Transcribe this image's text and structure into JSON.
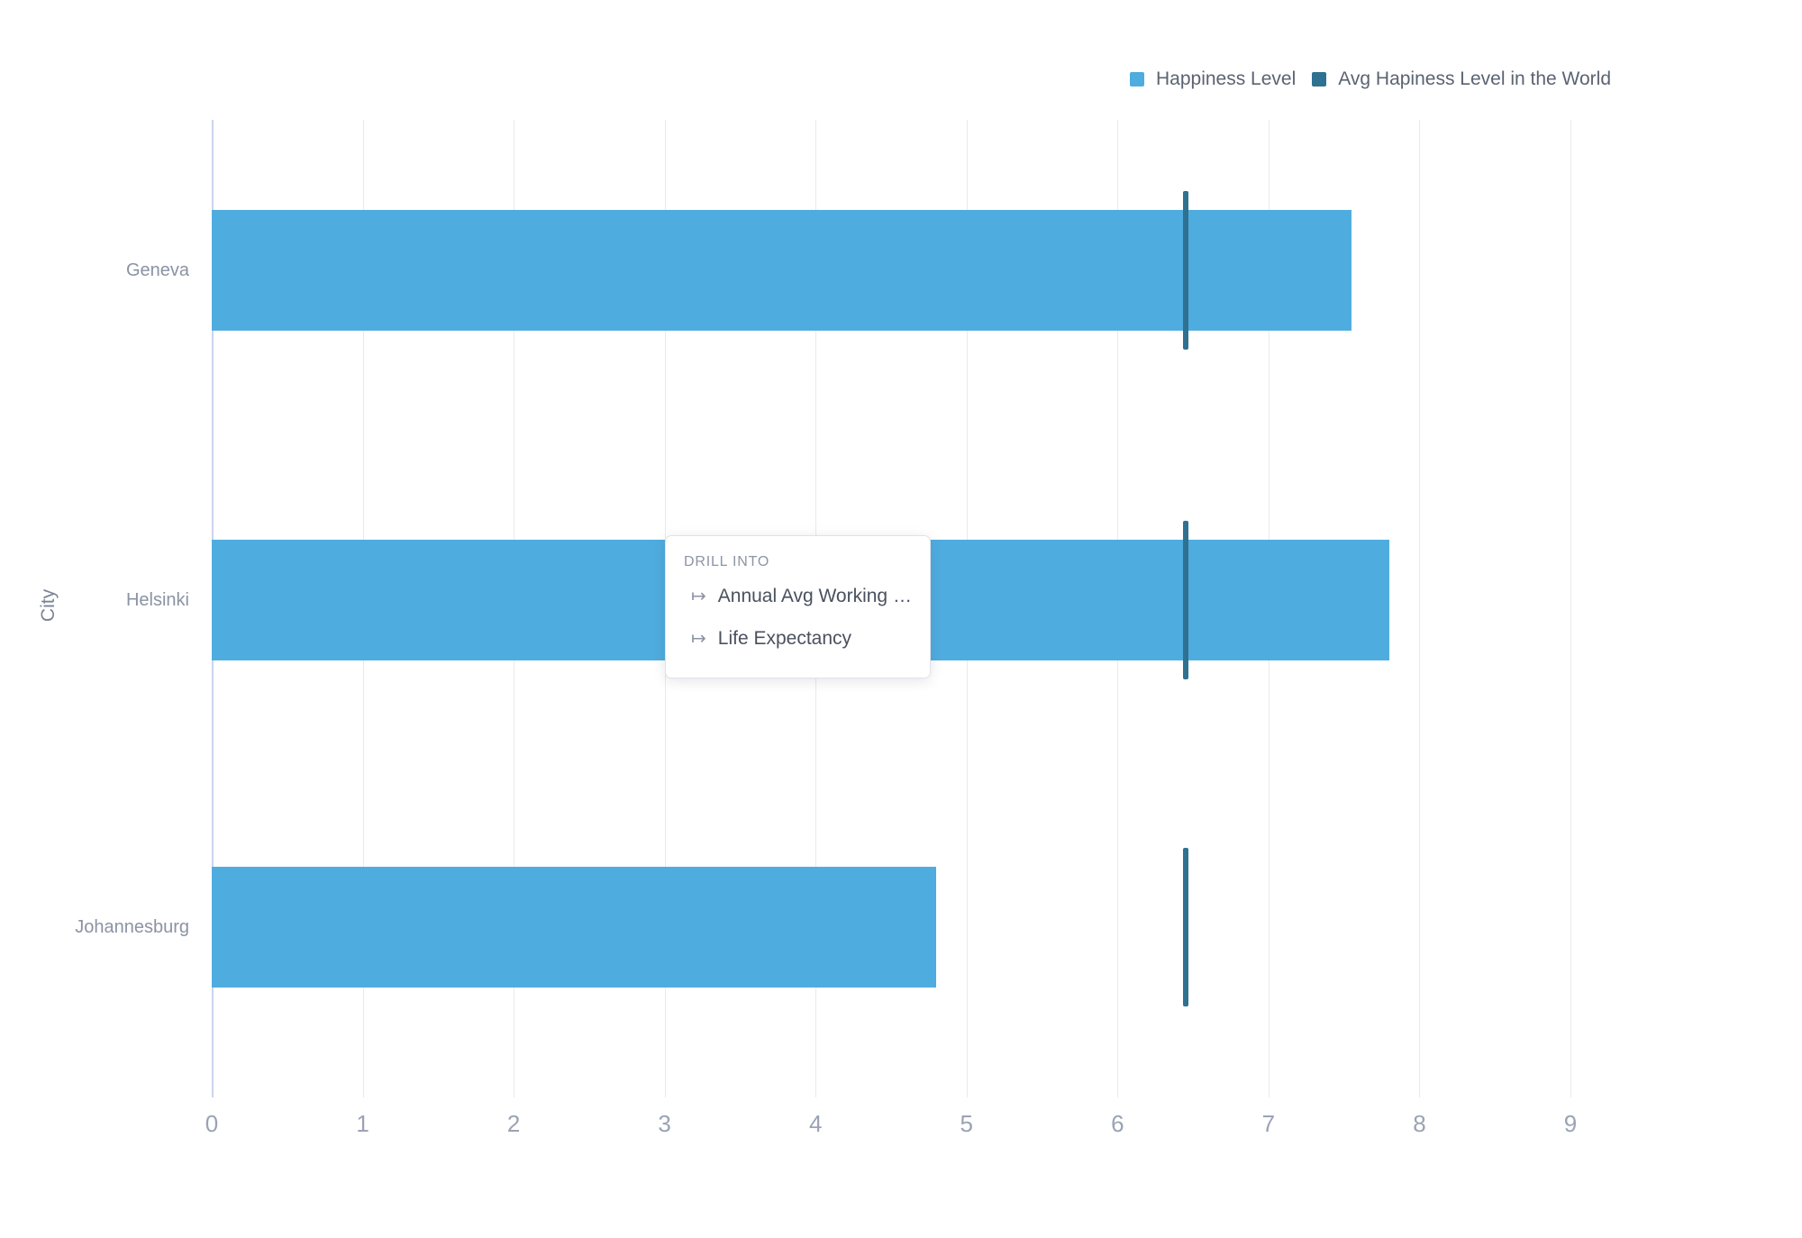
{
  "chart_data": {
    "type": "bar",
    "orientation": "horizontal",
    "title": "",
    "categories": [
      "Geneva",
      "Helsinki",
      "Johannesburg"
    ],
    "series": [
      {
        "name": "Happiness Level",
        "type": "bar",
        "color": "#4FACDF",
        "values": [
          7.55,
          7.8,
          4.8
        ]
      },
      {
        "name": "Avg Hapiness Level in the World",
        "type": "reference-line",
        "color": "#2F7191",
        "values": [
          6.45,
          6.45,
          6.45
        ]
      }
    ],
    "xlabel": "",
    "ylabel": "City",
    "xlim": [
      0,
      9
    ],
    "x_ticks": [
      0,
      1,
      2,
      3,
      4,
      5,
      6,
      7,
      8,
      9
    ],
    "grid": true,
    "legend_position": "top-right"
  },
  "legend": {
    "items": [
      {
        "label": "Happiness Level",
        "color": "#4FACDF"
      },
      {
        "label": "Avg Hapiness Level in the World",
        "color": "#2F7191"
      }
    ]
  },
  "drill_menu": {
    "title": "DRILL INTO",
    "item_icon": "↦",
    "items": [
      {
        "label": "Annual Avg Working …"
      },
      {
        "label": "Life Expectancy"
      }
    ]
  }
}
